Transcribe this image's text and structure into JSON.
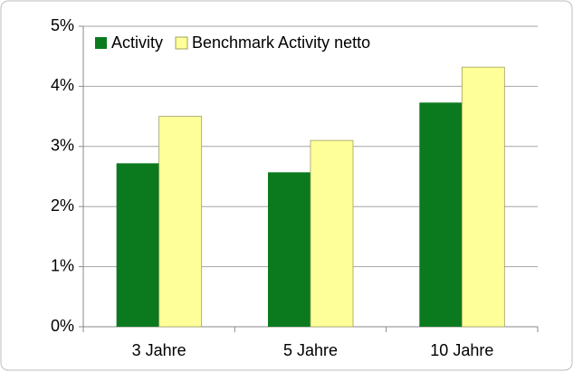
{
  "chart_data": {
    "type": "bar",
    "categories": [
      "3 Jahre",
      "5 Jahre",
      "10 Jahre"
    ],
    "series": [
      {
        "name": "Activity",
        "color": "#0b7a1e",
        "values": [
          2.72,
          2.57,
          3.73
        ]
      },
      {
        "name": "Benchmark Activity netto",
        "color": "#ffff99",
        "values": [
          3.5,
          3.1,
          4.32
        ]
      }
    ],
    "ylim": [
      0,
      5
    ],
    "yticks": [
      {
        "value": 0,
        "label": "0%"
      },
      {
        "value": 1,
        "label": "1%"
      },
      {
        "value": 2,
        "label": "2%"
      },
      {
        "value": 3,
        "label": "3%"
      },
      {
        "value": 4,
        "label": "4%"
      },
      {
        "value": 5,
        "label": "5%"
      }
    ],
    "grid": true,
    "legend": "top-left"
  }
}
